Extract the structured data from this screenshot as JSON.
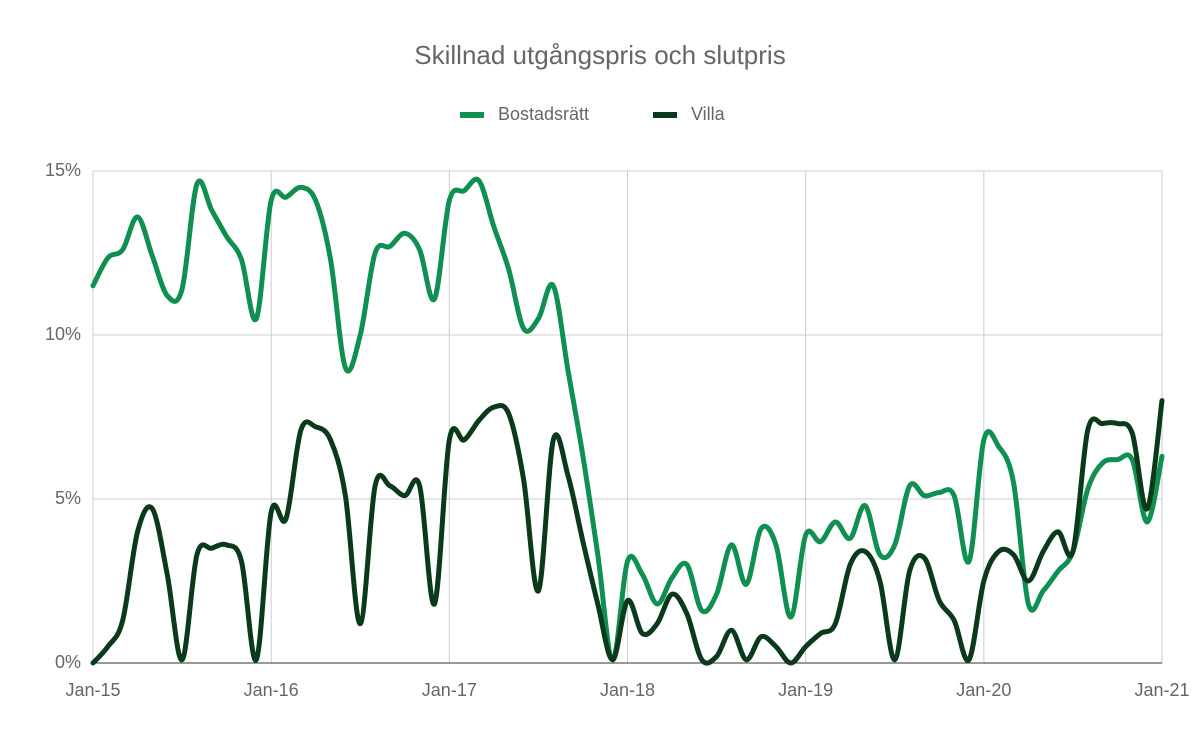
{
  "chart_data": {
    "type": "line",
    "title": "Skillnad utgångspris och slutpris",
    "categories": [
      "Jan-15",
      null,
      null,
      null,
      null,
      null,
      null,
      null,
      null,
      null,
      null,
      null,
      "Jan-16",
      null,
      null,
      null,
      null,
      null,
      null,
      null,
      null,
      null,
      null,
      null,
      "Jan-17",
      null,
      null,
      null,
      null,
      null,
      null,
      null,
      null,
      null,
      null,
      null,
      "Jan-18",
      null,
      null,
      null,
      null,
      null,
      null,
      null,
      null,
      null,
      null,
      null,
      "Jan-19",
      null,
      null,
      null,
      null,
      null,
      null,
      null,
      null,
      null,
      null,
      null,
      "Jan-20",
      null,
      null,
      null,
      null,
      null,
      null,
      null,
      null,
      null,
      null,
      null,
      "Jan-21"
    ],
    "series": [
      {
        "name": "Bostadsrätt",
        "color": "#0f8f50",
        "values": [
          11.5,
          12.35,
          12.6,
          13.6,
          12.4,
          11.2,
          11.4,
          14.6,
          13.8,
          13.0,
          12.3,
          10.5,
          14.1,
          14.2,
          14.5,
          14.1,
          12.3,
          9.0,
          10.0,
          12.5,
          12.7,
          13.1,
          12.6,
          11.1,
          14.1,
          14.4,
          14.7,
          13.3,
          12.0,
          10.2,
          10.5,
          11.5,
          8.9,
          6.3,
          3.3,
          0.1,
          3.1,
          2.7,
          1.8,
          2.6,
          3.0,
          1.6,
          2.1,
          3.6,
          2.4,
          4.1,
          3.6,
          1.4,
          3.9,
          3.7,
          4.3,
          3.8,
          4.8,
          3.3,
          3.6,
          5.4,
          5.1,
          5.2,
          5.1,
          3.1,
          6.8,
          6.6,
          5.5,
          1.8,
          2.2,
          2.8,
          3.4,
          5.3,
          6.1,
          6.2,
          6.2,
          4.3,
          6.3
        ]
      },
      {
        "name": "Villa",
        "color": "#0b3a1b",
        "values": [
          0,
          0.5,
          1.3,
          4.0,
          4.7,
          2.7,
          0.1,
          3.3,
          3.5,
          3.6,
          3.1,
          0.1,
          4.6,
          4.4,
          7.1,
          7.2,
          6.8,
          5.1,
          1.2,
          5.4,
          5.4,
          5.1,
          5.4,
          1.8,
          6.8,
          6.8,
          7.4,
          7.8,
          7.6,
          5.6,
          2.2,
          6.8,
          5.7,
          3.7,
          1.8,
          0.1,
          1.9,
          0.9,
          1.2,
          2.1,
          1.5,
          0.1,
          0.2,
          1.0,
          0.1,
          0.8,
          0.5,
          0,
          0.5,
          0.9,
          1.2,
          3.0,
          3.4,
          2.5,
          0.1,
          2.8,
          3.2,
          1.9,
          1.3,
          0.1,
          2.5,
          3.4,
          3.3,
          2.5,
          3.4,
          4.0,
          3.4,
          7.1,
          7.3,
          7.3,
          7.0,
          4.7,
          8.0
        ]
      }
    ],
    "ylim": [
      0,
      15
    ],
    "yticks": [
      {
        "value": 0,
        "label": "0%"
      },
      {
        "value": 5,
        "label": "5%"
      },
      {
        "value": 10,
        "label": "10%"
      },
      {
        "value": 15,
        "label": "15%"
      }
    ],
    "grid": true,
    "legend": "top"
  }
}
